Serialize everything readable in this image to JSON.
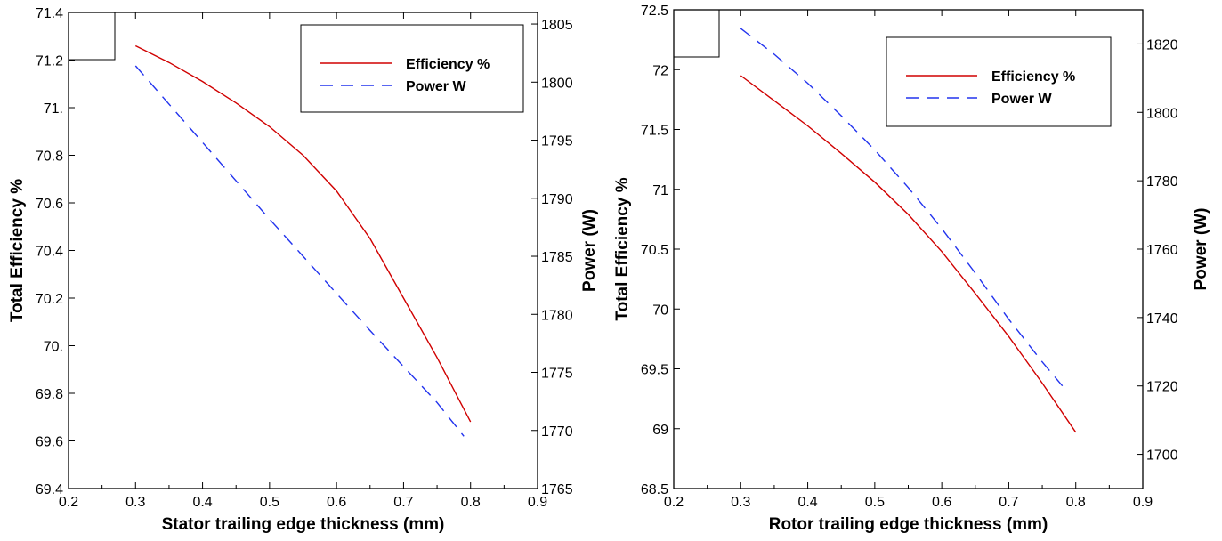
{
  "chart_data": [
    {
      "type": "line",
      "xlabel": "Stator trailing edge thickness (mm)",
      "ylabel": "Total Efficiency %",
      "y2label": "Power (W)",
      "xlim": [
        0.2,
        0.9
      ],
      "ylim": [
        69.4,
        71.4
      ],
      "y2lim": [
        1765,
        1806
      ],
      "xticks": [
        "0.2",
        "0.3",
        "0.4",
        "0.5",
        "0.6",
        "0.7",
        "0.8",
        "0.9"
      ],
      "yticks": [
        "69.4",
        "69.6",
        "69.8",
        "70.",
        "70.2",
        "70.4",
        "70.6",
        "70.8",
        "71.",
        "71.2",
        "71.4"
      ],
      "y2ticks": [
        "1765",
        "1770",
        "1775",
        "1780",
        "1785",
        "1790",
        "1795",
        "1800",
        "1805"
      ],
      "legend_position": "top-right",
      "grid": false,
      "series": [
        {
          "name": "Efficiency %",
          "axis": "left",
          "color": "#d00000",
          "dash": "solid",
          "x": [
            0.3,
            0.35,
            0.4,
            0.45,
            0.5,
            0.55,
            0.6,
            0.65,
            0.7,
            0.75,
            0.8
          ],
          "y": [
            71.26,
            71.19,
            71.11,
            71.02,
            70.92,
            70.8,
            70.65,
            70.45,
            70.2,
            69.95,
            69.68
          ]
        },
        {
          "name": "Power W",
          "axis": "right",
          "color": "#2233ee",
          "dash": "dashed",
          "x": [
            0.3,
            0.35,
            0.4,
            0.45,
            0.5,
            0.55,
            0.6,
            0.65,
            0.7,
            0.75,
            0.79
          ],
          "y": [
            1801.4,
            1798.1,
            1794.8,
            1791.5,
            1788.2,
            1785.0,
            1781.8,
            1778.6,
            1775.5,
            1772.4,
            1769.5
          ]
        }
      ]
    },
    {
      "type": "line",
      "xlabel": "Rotor trailing edge thickness (mm)",
      "ylabel": "Total Efficiency %",
      "y2label": "Power (W)",
      "xlim": [
        0.2,
        0.9
      ],
      "ylim": [
        68.5,
        72.5
      ],
      "y2lim": [
        1690,
        1830
      ],
      "xticks": [
        "0.2",
        "0.3",
        "0.4",
        "0.5",
        "0.6",
        "0.7",
        "0.8",
        "0.9"
      ],
      "yticks": [
        "68.5",
        "69",
        "69.5",
        "70",
        "70.5",
        "71",
        "71.5",
        "72",
        "72.5"
      ],
      "y2ticks": [
        "1700",
        "1720",
        "1740",
        "1760",
        "1780",
        "1800",
        "1820"
      ],
      "legend_position": "top-right",
      "grid": false,
      "series": [
        {
          "name": "Efficiency %",
          "axis": "left",
          "color": "#d00000",
          "dash": "solid",
          "x": [
            0.3,
            0.35,
            0.4,
            0.45,
            0.5,
            0.55,
            0.6,
            0.65,
            0.7,
            0.75,
            0.8
          ],
          "y": [
            71.95,
            71.74,
            71.53,
            71.3,
            71.06,
            70.79,
            70.48,
            70.13,
            69.77,
            69.38,
            68.97
          ]
        },
        {
          "name": "Power W",
          "axis": "right",
          "color": "#2233ee",
          "dash": "dashed",
          "x": [
            0.3,
            0.35,
            0.4,
            0.45,
            0.5,
            0.55,
            0.6,
            0.65,
            0.7,
            0.75,
            0.78
          ],
          "y": [
            1824.5,
            1817,
            1808.5,
            1799,
            1789,
            1778,
            1766,
            1753,
            1739.5,
            1727,
            1720
          ]
        }
      ]
    }
  ]
}
